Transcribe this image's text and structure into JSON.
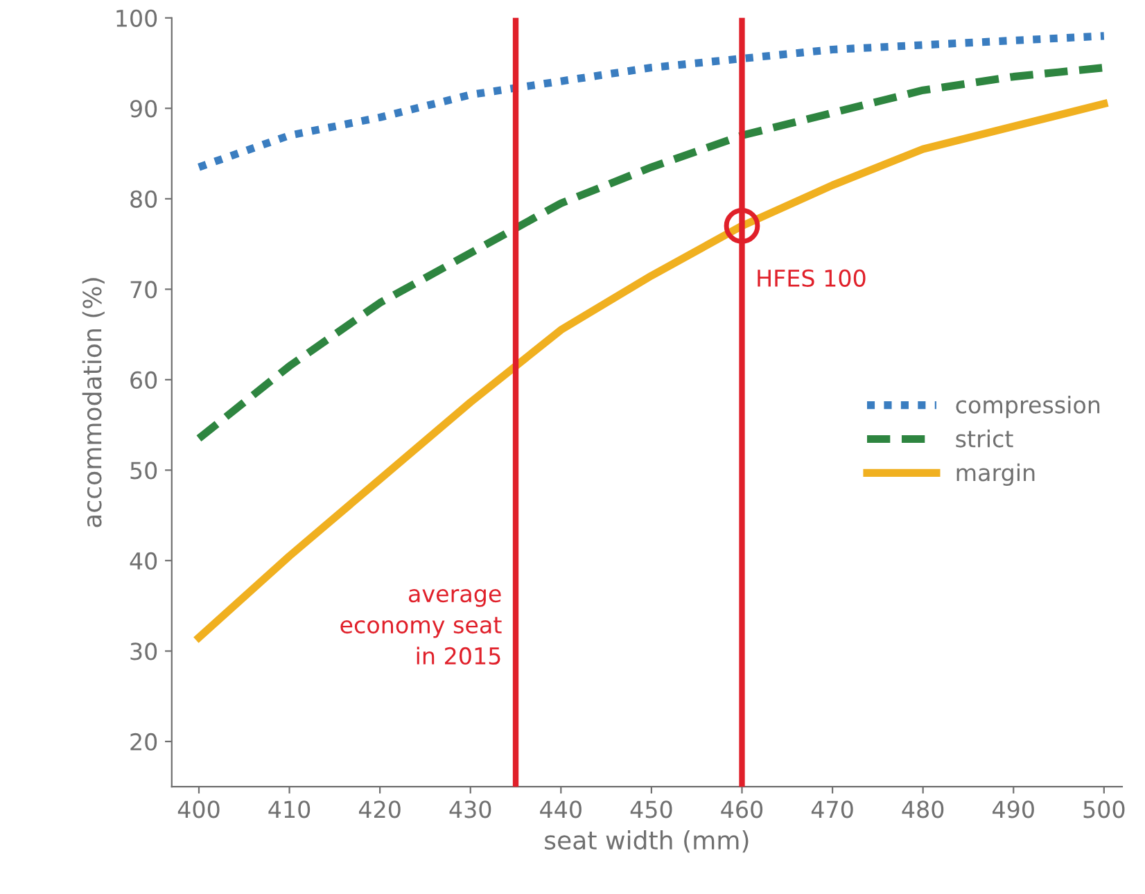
{
  "chart_data": {
    "type": "line",
    "xlabel": "seat width (mm)",
    "ylabel": "accommodation (%)",
    "x": [
      400,
      410,
      420,
      430,
      440,
      450,
      460,
      470,
      480,
      490,
      500
    ],
    "series": [
      {
        "name": "compression",
        "color": "#3a7dc0",
        "line_style": "dotted",
        "values": [
          83.5,
          87,
          89,
          91.5,
          93,
          94.5,
          95.5,
          96.5,
          97,
          97.5,
          98
        ]
      },
      {
        "name": "strict",
        "color": "#2e8540",
        "line_style": "dashed",
        "values": [
          53.5,
          61.5,
          68.5,
          74,
          79.5,
          83.5,
          87,
          89.5,
          92,
          93.5,
          94.5
        ]
      },
      {
        "name": "margin",
        "color": "#f0b020",
        "line_style": "solid",
        "values": [
          31.5,
          40.5,
          49,
          57.5,
          65.5,
          71.5,
          77,
          81.5,
          85.5,
          88,
          90.5
        ]
      },
      {
        "type": "scatter",
        "marker": "circle",
        "color": "#e0202a",
        "x": [
          460
        ],
        "values": [
          77
        ]
      }
    ],
    "ref_lines": [
      {
        "axis": "x",
        "value": 435,
        "label": "average\neconomy seat\nin 2015",
        "color": "#e0202a"
      },
      {
        "axis": "x",
        "value": 460,
        "label": "HFES 100",
        "color": "#e0202a"
      }
    ],
    "xlim": [
      397,
      502
    ],
    "ylim": [
      15,
      100
    ],
    "xticks": [
      400,
      410,
      420,
      430,
      440,
      450,
      460,
      470,
      480,
      490,
      500
    ],
    "yticks": [
      20,
      30,
      40,
      50,
      60,
      70,
      80,
      90,
      100
    ],
    "grid": false,
    "legend": "right",
    "marker": "none"
  }
}
